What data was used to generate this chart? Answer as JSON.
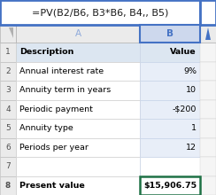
{
  "formula_text": "=PV(B2/B6, B3*B6, B4,, B5)",
  "col_A": [
    "Description",
    "Annual interest rate",
    "Annuity term in years",
    "Periodic payment",
    "Annuity type",
    "Periods per year",
    "",
    "Present value"
  ],
  "col_B": [
    "Value",
    "9%",
    "10",
    "-$200",
    "1",
    "12",
    "",
    "$15,906.75"
  ],
  "row1_bg": "#dce6f1",
  "formula_bar_border": "#4472c4",
  "col_b_header_color": "#4472c4",
  "col_a_header_color": "#8eaadb",
  "col_b_selected_bg": "#cdd8ed",
  "col_b_cell_bg": "#e8eef8",
  "arrow_color": "#4472c4",
  "row8_border_color": "#1e7145",
  "fig_bg": "#ffffff"
}
